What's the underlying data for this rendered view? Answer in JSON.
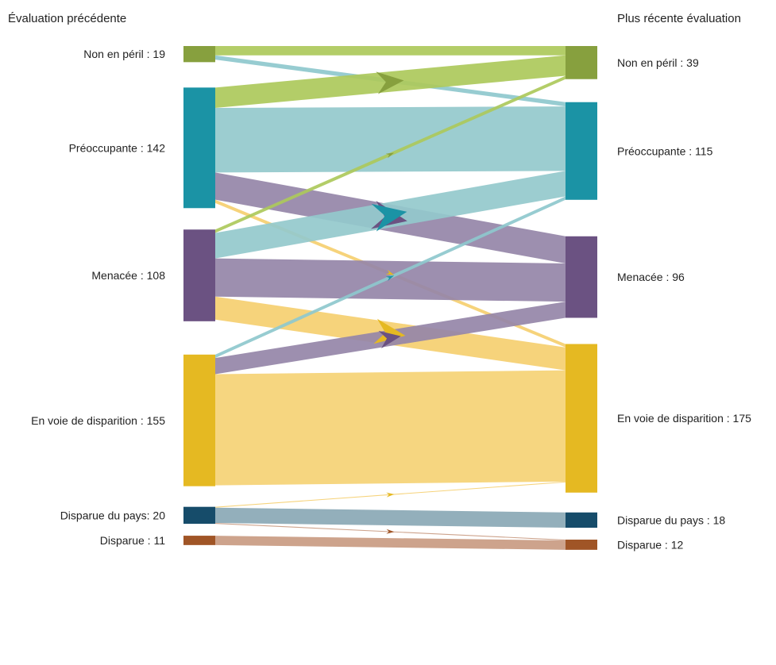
{
  "chart_data": {
    "type": "sankey",
    "columns": {
      "left_title": "Évaluation précédente",
      "right_title": "Plus récente évaluation"
    },
    "left_nodes": [
      {
        "id": "np",
        "label": "Non en péril : 19",
        "value": 19,
        "color": "#87a03e"
      },
      {
        "id": "pr",
        "label": "Préoccupante : 142",
        "value": 142,
        "color": "#1b93a5"
      },
      {
        "id": "me",
        "label": "Menacée : 108",
        "value": 108,
        "color": "#6b5282"
      },
      {
        "id": "vd",
        "label": "En voie de disparition : 155",
        "value": 155,
        "color": "#e5b922"
      },
      {
        "id": "dp",
        "label": "Disparue du pays: 20",
        "value": 20,
        "color": "#164c6a"
      },
      {
        "id": "di",
        "label": "Disparue : 11",
        "value": 11,
        "color": "#a05526"
      }
    ],
    "right_nodes": [
      {
        "id": "np",
        "label": "Non en péril : 39",
        "value": 39,
        "color": "#87a03e"
      },
      {
        "id": "pr",
        "label": "Préoccupante : 115",
        "value": 115,
        "color": "#1b93a5"
      },
      {
        "id": "me",
        "label": "Menacée : 96",
        "value": 96,
        "color": "#6b5282"
      },
      {
        "id": "vd",
        "label": "En voie de disparition : 175",
        "value": 175,
        "color": "#e5b922"
      },
      {
        "id": "dp",
        "label": "Disparue du pays : 18",
        "value": 18,
        "color": "#164c6a"
      },
      {
        "id": "di",
        "label": "Disparue : 12",
        "value": 12,
        "color": "#a05526"
      }
    ],
    "flows": [
      {
        "from": "np",
        "to": "np",
        "value": 11,
        "color": "#adc95b",
        "arrow": false
      },
      {
        "from": "np",
        "to": "pr",
        "value": 5,
        "color": "#8ec8cd",
        "arrow": true,
        "arrow_color": "#1b93a5"
      },
      {
        "from": "pr",
        "to": "np",
        "value": 24,
        "color": "#adc95b",
        "arrow": true,
        "arrow_color": "#87a03e"
      },
      {
        "from": "pr",
        "to": "pr",
        "value": 76,
        "color": "#94c9cc",
        "arrow": false
      },
      {
        "from": "pr",
        "to": "me",
        "value": 32,
        "color": "#9585a8",
        "arrow": true,
        "arrow_color": "#6b5282"
      },
      {
        "from": "pr",
        "to": "vd",
        "value": 4,
        "color": "#f5cf70",
        "arrow": true,
        "arrow_color": "#e5b922"
      },
      {
        "from": "me",
        "to": "np",
        "value": 4,
        "color": "#adc95b",
        "arrow": true,
        "arrow_color": "#87a03e"
      },
      {
        "from": "me",
        "to": "pr",
        "value": 30,
        "color": "#94c9cc",
        "arrow": true,
        "arrow_color": "#1b93a5"
      },
      {
        "from": "me",
        "to": "me",
        "value": 45,
        "color": "#9585a8",
        "arrow": false
      },
      {
        "from": "me",
        "to": "vd",
        "value": 27,
        "color": "#f5cf70",
        "arrow": true,
        "arrow_color": "#e5b922"
      },
      {
        "from": "vd",
        "to": "pr",
        "value": 4,
        "color": "#8ec8cd",
        "arrow": true,
        "arrow_color": "#1b93a5"
      },
      {
        "from": "vd",
        "to": "me",
        "value": 19,
        "color": "#9585a8",
        "arrow": true,
        "arrow_color": "#6b5282"
      },
      {
        "from": "vd",
        "to": "vd",
        "value": 131,
        "color": "#f5d275",
        "arrow": false
      },
      {
        "from": "dp",
        "to": "vd",
        "value": 1,
        "color": "#f5cf70",
        "arrow": true,
        "arrow_color": "#e5b922"
      },
      {
        "from": "dp",
        "to": "dp",
        "value": 18,
        "color": "#8aa8b5",
        "arrow": false
      },
      {
        "from": "dp",
        "to": "di",
        "value": 1,
        "color": "#c99b82",
        "arrow": true,
        "arrow_color": "#a05526"
      },
      {
        "from": "di",
        "to": "di",
        "value": 11,
        "color": "#c99b82",
        "arrow": false
      }
    ]
  }
}
